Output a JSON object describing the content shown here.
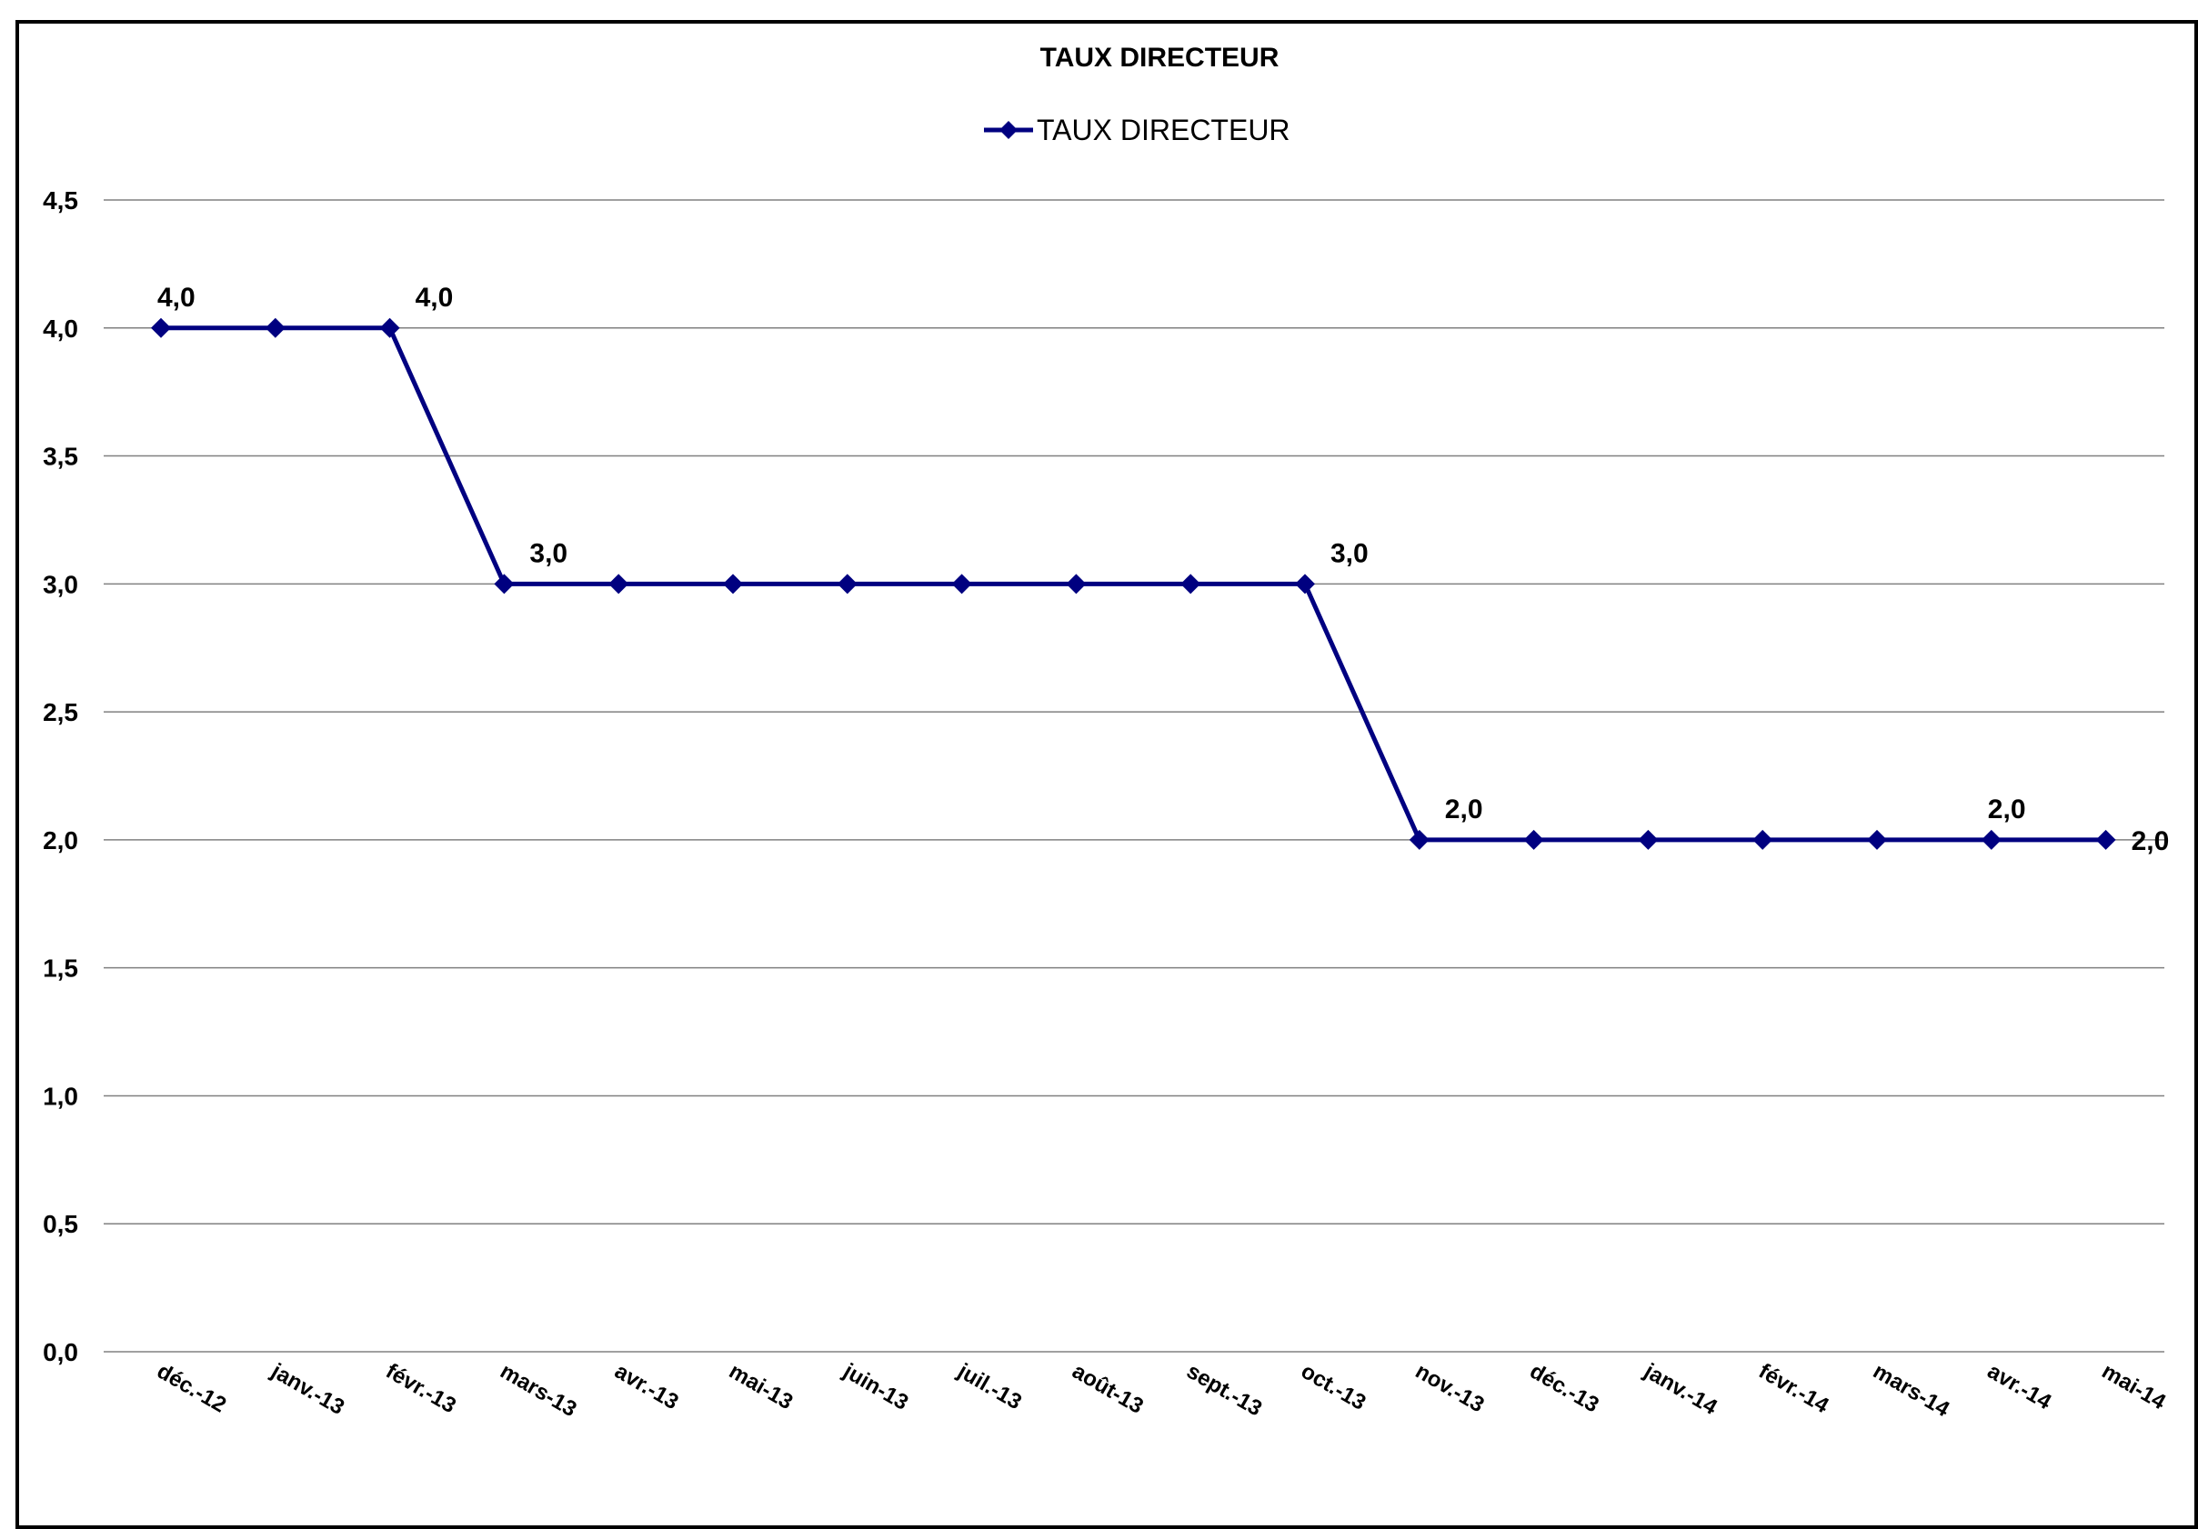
{
  "chart_data": {
    "type": "line",
    "title": "TAUX DIRECTEUR",
    "xlabel": "",
    "ylabel": "",
    "categories": [
      "déc.-12",
      "janv.-13",
      "févr.-13",
      "mars-13",
      "avr.-13",
      "mai-13",
      "juin-13",
      "juil.-13",
      "août-13",
      "sept.-13",
      "oct.-13",
      "nov.-13",
      "déc.-13",
      "janv.-14",
      "févr.-14",
      "mars-14",
      "avr.-14",
      "mai-14"
    ],
    "series": [
      {
        "name": "TAUX DIRECTEUR",
        "values": [
          4.0,
          4.0,
          4.0,
          3.0,
          3.0,
          3.0,
          3.0,
          3.0,
          3.0,
          3.0,
          3.0,
          2.0,
          2.0,
          2.0,
          2.0,
          2.0,
          2.0,
          2.0
        ],
        "color": "#000080",
        "marker": "diamond"
      }
    ],
    "ylim": [
      0,
      4.5
    ],
    "yticks": [
      "0,0",
      "0,5",
      "1,0",
      "1,5",
      "2,0",
      "2,5",
      "3,0",
      "3,5",
      "4,0",
      "4,5"
    ],
    "ytick_values": [
      0,
      0.5,
      1.0,
      1.5,
      2.0,
      2.5,
      3.0,
      3.5,
      4.0,
      4.5
    ],
    "data_labels": [
      {
        "index": 0,
        "text": "4,0"
      },
      {
        "index": 2,
        "text": "4,0"
      },
      {
        "index": 3,
        "text": "3,0"
      },
      {
        "index": 10,
        "text": "3,0"
      },
      {
        "index": 11,
        "text": "2,0"
      },
      {
        "index": 16,
        "text": "2,0"
      },
      {
        "index": 17,
        "text": "2,0"
      }
    ],
    "grid": true,
    "legend_position": "top-center"
  }
}
